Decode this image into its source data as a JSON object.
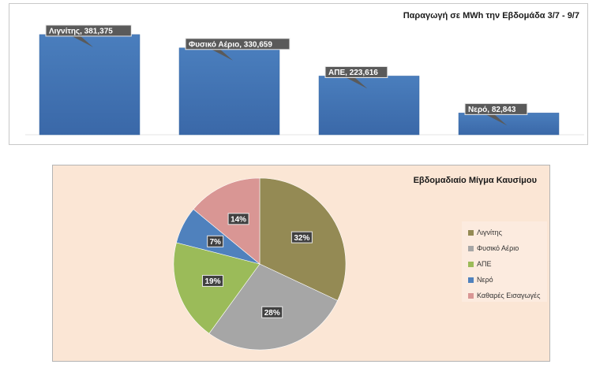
{
  "chart_data": [
    {
      "type": "bar",
      "title": "Παραγωγή σε MWh την Εβδομάδα 3/7 - 9/7",
      "categories": [
        "Λιγνίτης",
        "Φυσικό Αέριο",
        "ΑΠΕ",
        "Νερό"
      ],
      "values": [
        381375,
        330659,
        223616,
        82843
      ],
      "data_labels": [
        "Λιγνίτης, 381,375",
        "Φυσικό Αέριο, 330,659",
        "ΑΠΕ, 223,616",
        "Νερό, 82,843"
      ],
      "ylim": [
        0,
        450000
      ],
      "grid": false,
      "bar_color": "#4f81bd"
    },
    {
      "type": "pie",
      "title": "Εβδομαδιαίο Μίγμα Καυσίμου",
      "categories": [
        "Λιγνίτης",
        "Φυσικό Αέριο",
        "ΑΠΕ",
        "Νερό",
        "Καθαρές Εισαγωγές"
      ],
      "values": [
        32,
        28,
        19,
        7,
        14
      ],
      "data_labels": [
        "32%",
        "28%",
        "19%",
        "7%",
        "14%"
      ],
      "colors": [
        "#948a54",
        "#a6a6a6",
        "#9bbb59",
        "#4f81bd",
        "#d99694"
      ],
      "legend_position": "right"
    }
  ]
}
